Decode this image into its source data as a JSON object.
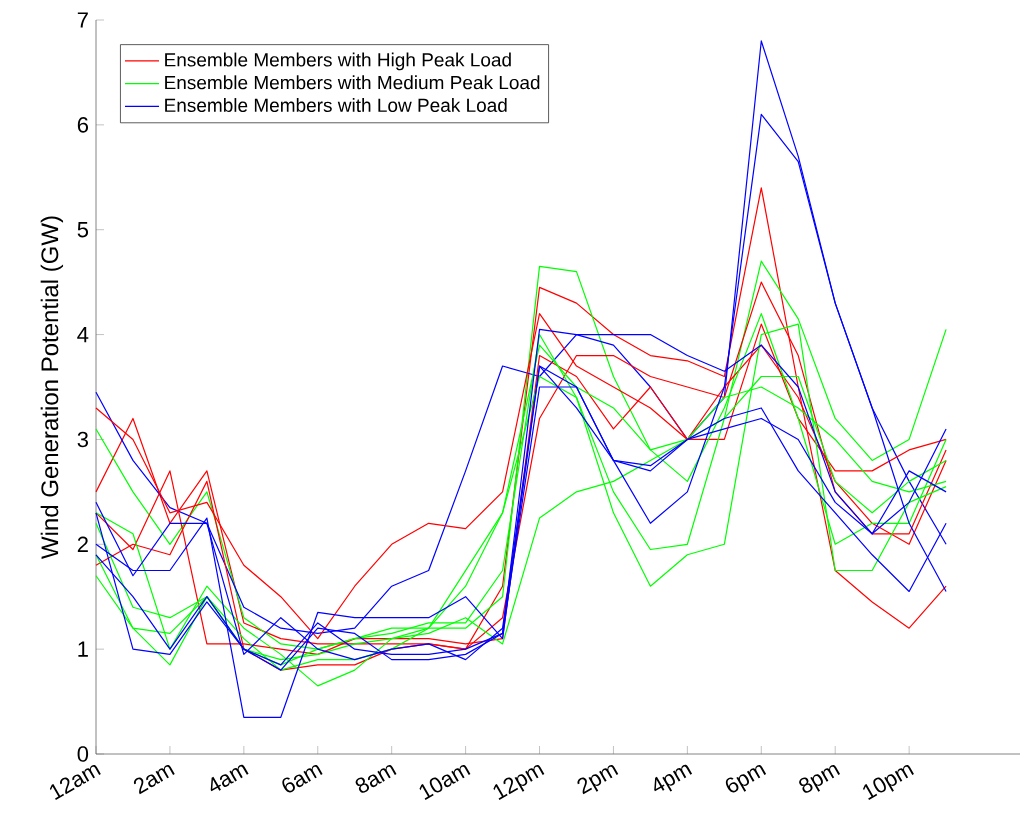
{
  "chart_data": {
    "type": "line",
    "ylabel": "Wind Generation Potential (GW)",
    "categories": [
      "12am",
      null,
      "2am",
      null,
      "4am",
      null,
      "6am",
      null,
      "8am",
      null,
      "10am",
      null,
      "12pm",
      null,
      "2pm",
      null,
      "4pm",
      null,
      "6pm",
      null,
      "8pm",
      null,
      "10pm",
      null
    ],
    "ylim": [
      0,
      7
    ],
    "yticks": [
      0,
      1,
      2,
      3,
      4,
      5,
      6,
      7
    ],
    "legend": "top left",
    "grid": false,
    "series": [
      {
        "name": "Ensemble Members with High Peak Load",
        "color": "#ff0000",
        "values": [
          2.5,
          3.2,
          2.2,
          2.7,
          1.25,
          1.1,
          1.05,
          1.05,
          1.05,
          1.05,
          1.0,
          1.6,
          4.45,
          4.3,
          4.0,
          3.8,
          3.75,
          3.6,
          5.4,
          3.5,
          1.75,
          1.45,
          1.2,
          1.6
        ]
      },
      {
        "name": "Ensemble Members with Medium Peak Load",
        "color": "#00ff00",
        "values": [
          3.1,
          2.5,
          2.0,
          2.5,
          1.3,
          1.05,
          1.0,
          1.1,
          1.2,
          1.2,
          1.2,
          1.5,
          4.65,
          4.6,
          3.6,
          2.9,
          3.0,
          3.2,
          4.7,
          4.15,
          3.2,
          2.8,
          3.0,
          4.05
        ]
      },
      {
        "name": "Ensemble Members with Low Peak Load",
        "color": "#0000ff",
        "values": [
          3.45,
          2.8,
          2.35,
          2.2,
          1.4,
          1.2,
          1.15,
          1.2,
          1.6,
          1.75,
          2.7,
          3.7,
          3.6,
          4.0,
          3.9,
          3.5,
          3.0,
          3.4,
          6.8,
          5.7,
          4.3,
          3.3,
          2.6,
          2.0
        ]
      },
      {
        "color": "#ff0000",
        "values": [
          3.3,
          3.0,
          2.3,
          2.4,
          1.8,
          1.5,
          1.1,
          1.6,
          2.0,
          2.2,
          2.15,
          2.5,
          4.2,
          3.7,
          3.5,
          3.3,
          3.0,
          3.0,
          4.1,
          3.2,
          2.7,
          2.7,
          2.9,
          3.0
        ]
      },
      {
        "color": "#ff0000",
        "values": [
          1.8,
          2.0,
          1.9,
          2.6,
          1.0,
          0.8,
          0.85,
          0.85,
          1.0,
          1.05,
          1.0,
          1.3,
          3.2,
          3.8,
          3.8,
          3.6,
          3.5,
          3.4,
          4.5,
          3.8,
          2.5,
          2.1,
          2.1,
          2.9
        ]
      },
      {
        "color": "#ff0000",
        "values": [
          2.3,
          1.95,
          2.7,
          1.05,
          1.05,
          1.0,
          0.95,
          1.1,
          1.1,
          1.1,
          1.05,
          1.1,
          3.8,
          3.6,
          3.1,
          3.5,
          3.0,
          3.5,
          3.9,
          3.4,
          2.6,
          2.2,
          2.0,
          2.8
        ]
      },
      {
        "color": "#00ff00",
        "values": [
          2.3,
          2.1,
          1.0,
          1.6,
          1.2,
          0.95,
          0.65,
          0.8,
          1.1,
          1.15,
          1.3,
          1.05,
          2.25,
          2.5,
          2.6,
          2.8,
          3.0,
          3.4,
          3.5,
          3.3,
          3.0,
          2.6,
          2.5,
          2.6
        ]
      },
      {
        "color": "#00ff00",
        "values": [
          1.7,
          1.2,
          1.15,
          1.5,
          1.0,
          0.9,
          0.95,
          1.05,
          1.1,
          1.2,
          1.75,
          2.3,
          3.6,
          3.4,
          2.3,
          1.6,
          1.9,
          2.0,
          4.0,
          4.1,
          1.75,
          1.75,
          2.4,
          2.55
        ]
      },
      {
        "color": "#00ff00",
        "values": [
          1.9,
          1.2,
          0.85,
          1.5,
          1.0,
          0.85,
          1.0,
          1.1,
          1.15,
          1.25,
          1.25,
          1.75,
          4.0,
          3.4,
          2.5,
          1.95,
          2.0,
          3.2,
          3.6,
          3.6,
          2.6,
          2.3,
          2.6,
          2.8
        ]
      },
      {
        "color": "#00ff00",
        "values": [
          2.2,
          1.4,
          1.3,
          1.5,
          1.1,
          0.8,
          0.9,
          0.9,
          1.0,
          1.2,
          1.6,
          2.3,
          3.9,
          3.5,
          3.3,
          2.9,
          2.6,
          3.3,
          4.2,
          3.2,
          2.0,
          2.2,
          2.2,
          3.0
        ]
      },
      {
        "color": "#0000ff",
        "values": [
          2.0,
          1.75,
          1.75,
          2.25,
          0.35,
          0.35,
          1.35,
          1.3,
          1.3,
          1.3,
          1.5,
          1.1,
          3.7,
          3.5,
          2.8,
          2.2,
          2.5,
          3.5,
          6.1,
          5.65,
          4.3,
          3.3,
          2.2,
          1.55
        ]
      },
      {
        "color": "#0000ff",
        "values": [
          2.3,
          1.0,
          0.95,
          1.45,
          1.0,
          0.8,
          1.2,
          1.15,
          0.9,
          0.9,
          0.95,
          1.15,
          4.05,
          4.0,
          4.0,
          4.0,
          3.8,
          3.65,
          3.9,
          3.5,
          2.5,
          2.1,
          2.4,
          3.1
        ]
      },
      {
        "color": "#0000ff",
        "values": [
          1.9,
          1.5,
          1.0,
          1.5,
          1.0,
          0.85,
          1.25,
          1.0,
          0.95,
          0.95,
          1.0,
          1.15,
          3.5,
          3.5,
          2.8,
          2.75,
          3.0,
          3.2,
          3.3,
          2.7,
          2.3,
          1.9,
          1.55,
          2.2
        ]
      },
      {
        "color": "#0000ff",
        "values": [
          2.4,
          1.7,
          2.2,
          2.2,
          0.95,
          1.3,
          1.0,
          0.9,
          1.0,
          1.05,
          0.9,
          1.2,
          3.7,
          3.3,
          2.8,
          2.7,
          3.0,
          3.1,
          3.2,
          3.0,
          2.4,
          2.1,
          2.7,
          2.5
        ]
      }
    ]
  }
}
